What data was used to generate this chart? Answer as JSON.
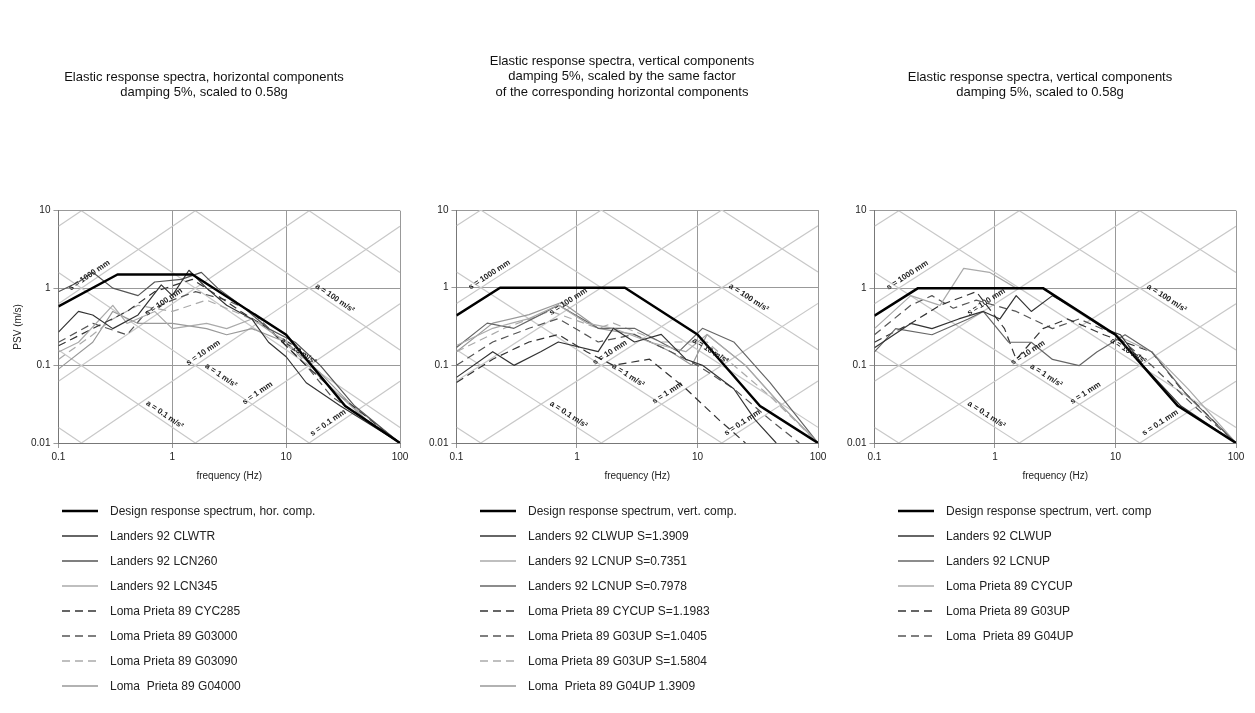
{
  "chart_data": [
    {
      "type": "line",
      "title": "Elastic response spectra, horizontal components\ndamping 5%, scaled to 0.58g",
      "xlabel": "frequency (Hz)",
      "ylabel": "PSV (m/s)",
      "log": "xy",
      "xlim": [
        0.1,
        100
      ],
      "ylim": [
        0.01,
        10
      ],
      "xticks": [
        0.1,
        1,
        10,
        100
      ],
      "yticks": [
        0.01,
        0.1,
        1,
        10
      ],
      "grid": true,
      "legend": "bottom",
      "marker": "none",
      "series": [
        {
          "name": "Design response spectrum, hor. comp.",
          "color": "#000000",
          "line_style": "solid",
          "x": [
            0.1,
            0.33,
            1.5,
            10,
            33,
            100
          ],
          "values": [
            0.58,
            1.5,
            1.5,
            0.25,
            0.03,
            0.01
          ]
        },
        {
          "name": "Landers 92 CLWTR",
          "color": "#333333",
          "line_style": "solid",
          "x": [
            0.1,
            0.15,
            0.2,
            0.3,
            0.5,
            0.8,
            1,
            1.4,
            2,
            3,
            5,
            7,
            10,
            15,
            30,
            100
          ],
          "values": [
            0.27,
            0.5,
            0.45,
            0.3,
            0.45,
            1.1,
            0.8,
            1.7,
            1.0,
            0.6,
            0.4,
            0.2,
            0.13,
            0.06,
            0.03,
            0.01
          ]
        },
        {
          "name": "Landers 92 LCN260",
          "color": "#555555",
          "line_style": "solid",
          "x": [
            0.1,
            0.15,
            0.2,
            0.3,
            0.5,
            0.7,
            1.2,
            1.8,
            2.5,
            4,
            7,
            12,
            20,
            40,
            100
          ],
          "values": [
            0.9,
            1.2,
            1.6,
            1.0,
            0.8,
            1.2,
            1.3,
            1.6,
            1.0,
            0.6,
            0.3,
            0.2,
            0.1,
            0.03,
            0.01
          ]
        },
        {
          "name": "Landers 92 LCN345",
          "color": "#aaaaaa",
          "line_style": "solid",
          "x": [
            0.1,
            0.15,
            0.3,
            0.4,
            0.7,
            1,
            2,
            3,
            5,
            8,
            12,
            20,
            50,
            100
          ],
          "values": [
            0.15,
            0.2,
            0.6,
            0.35,
            0.5,
            0.3,
            0.35,
            0.3,
            0.4,
            0.25,
            0.18,
            0.07,
            0.02,
            0.01
          ]
        },
        {
          "name": "Loma Prieta 89 CYC285",
          "color": "#333333",
          "line_style": "dashed",
          "x": [
            0.1,
            0.2,
            0.4,
            0.7,
            1.5,
            2.5,
            4,
            7,
            15,
            30,
            100
          ],
          "values": [
            0.18,
            0.3,
            0.5,
            0.9,
            1.3,
            0.8,
            0.5,
            0.3,
            0.1,
            0.04,
            0.01
          ]
        },
        {
          "name": "Loma Prieta 89 G03000",
          "color": "#555555",
          "line_style": "dashed",
          "x": [
            0.1,
            0.2,
            0.4,
            0.6,
            1,
            1.6,
            3,
            5,
            8,
            15,
            25,
            100
          ],
          "values": [
            0.2,
            0.35,
            0.25,
            0.5,
            0.7,
            0.9,
            0.7,
            0.5,
            0.25,
            0.1,
            0.04,
            0.01
          ]
        },
        {
          "name": "Loma Prieta 89 G03090",
          "color": "#aaaaaa",
          "line_style": "dashed",
          "x": [
            0.1,
            0.2,
            0.3,
            0.5,
            1,
            2,
            3.5,
            6,
            12,
            25,
            100
          ],
          "values": [
            0.12,
            0.25,
            0.4,
            0.6,
            0.5,
            0.7,
            0.5,
            0.35,
            0.15,
            0.05,
            0.01
          ]
        },
        {
          "name": "Loma  Prieta 89 G04000",
          "color": "#999999",
          "line_style": "solid",
          "x": [
            0.1,
            0.2,
            0.3,
            0.5,
            1,
            2,
            3,
            5,
            10,
            20,
            50,
            100
          ],
          "values": [
            0.09,
            0.2,
            0.5,
            0.35,
            0.35,
            0.3,
            0.25,
            0.3,
            0.2,
            0.08,
            0.02,
            0.01
          ]
        },
        {
          "color": "#c8c8c8",
          "x": [
            15.92,
            100
          ],
          "values": [
            0.01,
            0.0628
          ]
        },
        {
          "color": "#c8c8c8",
          "x": [
            1.592,
            100
          ],
          "values": [
            0.01,
            0.628
          ]
        },
        {
          "color": "#c8c8c8",
          "x": [
            0.1592,
            100
          ],
          "values": [
            0.01,
            6.283
          ]
        },
        {
          "color": "#c8c8c8",
          "x": [
            0.1,
            15.92
          ],
          "values": [
            0.0628,
            10
          ]
        },
        {
          "color": "#c8c8c8",
          "x": [
            0.1,
            1.592
          ],
          "values": [
            0.628,
            10
          ]
        },
        {
          "color": "#c8c8c8",
          "x": [
            0.1,
            0.1592
          ],
          "values": [
            6.283,
            10
          ]
        },
        {
          "color": "#c8c8c8",
          "x": [
            0.1,
            0.1592
          ],
          "values": [
            0.0159,
            0.01
          ]
        },
        {
          "color": "#c8c8c8",
          "x": [
            0.1,
            1.592
          ],
          "values": [
            0.159,
            0.01
          ]
        },
        {
          "color": "#c8c8c8",
          "x": [
            0.1,
            15.92
          ],
          "values": [
            1.592,
            0.01
          ]
        },
        {
          "color": "#c8c8c8",
          "x": [
            0.1592,
            100
          ],
          "values": [
            10,
            0.0159
          ]
        },
        {
          "color": "#c8c8c8",
          "x": [
            1.592,
            100
          ],
          "values": [
            10,
            0.159
          ]
        },
        {
          "color": "#c8c8c8",
          "x": [
            15.92,
            100
          ],
          "values": [
            10,
            1.592
          ]
        }
      ],
      "annotations": [
        {
          "text": "s = 1000 mm",
          "x": 0.2,
          "y": 1.26
        },
        {
          "text": "s = 100 mm",
          "x": 0.9,
          "y": 0.57
        },
        {
          "text": "s = 10 mm",
          "x": 2,
          "y": 0.126
        },
        {
          "text": "s = 1 mm",
          "x": 6,
          "y": 0.038
        },
        {
          "text": "s = 0.1 mm",
          "x": 25,
          "y": 0.0157
        },
        {
          "text": "a = 100 m/s²",
          "x": 25,
          "y": 0.64
        },
        {
          "text": "a = 10 m/s²",
          "x": 12,
          "y": 0.133
        },
        {
          "text": "a = 1 m/s²",
          "x": 2.5,
          "y": 0.064
        },
        {
          "text": "a = 0.1 m/s²",
          "x": 0.8,
          "y": 0.02
        }
      ]
    },
    {
      "type": "line",
      "title": "Elastic response spectra, vertical components\ndamping 5%, scaled by the same factor\nof the corresponding horizontal components",
      "xlabel": "frequency (Hz)",
      "log": "xy",
      "xlim": [
        0.1,
        100
      ],
      "ylim": [
        0.01,
        10
      ],
      "xticks": [
        0.1,
        1,
        10,
        100
      ],
      "yticks": [
        0.01,
        0.1,
        1,
        10
      ],
      "grid": true,
      "legend": "bottom",
      "marker": "none",
      "series": [
        {
          "name": "Design response spectrum, vert. comp.",
          "color": "#000000",
          "line_style": "solid",
          "x": [
            0.1,
            0.23,
            2.5,
            10,
            33,
            100
          ],
          "values": [
            0.44,
            1,
            1,
            0.25,
            0.03,
            0.01
          ]
        },
        {
          "name": "Landers 92 CLWUP S=1.3909",
          "color": "#333333",
          "line_style": "solid",
          "x": [
            0.1,
            0.2,
            0.3,
            0.5,
            0.7,
            1.5,
            2,
            3,
            5,
            8,
            11,
            20,
            30,
            45
          ],
          "values": [
            0.07,
            0.15,
            0.1,
            0.15,
            0.2,
            0.15,
            0.3,
            0.2,
            0.25,
            0.12,
            0.1,
            0.05,
            0.02,
            0.01
          ]
        },
        {
          "name": "Landers 92 LCNUP S=0.7351",
          "color": "#aaaaaa",
          "line_style": "solid",
          "x": [
            0.1,
            0.2,
            0.4,
            0.7,
            1.2,
            2,
            4,
            8,
            12,
            25,
            50,
            100
          ],
          "values": [
            0.18,
            0.3,
            0.4,
            0.6,
            0.35,
            0.3,
            0.2,
            0.15,
            0.25,
            0.1,
            0.03,
            0.01
          ]
        },
        {
          "name": "Landers 92 LCNUP S=0.7978",
          "color": "#666666",
          "line_style": "solid",
          "x": [
            0.1,
            0.18,
            0.3,
            0.5,
            0.7,
            1.5,
            3,
            7,
            11,
            20,
            40,
            100
          ],
          "values": [
            0.17,
            0.35,
            0.3,
            0.45,
            0.6,
            0.3,
            0.3,
            0.15,
            0.3,
            0.2,
            0.06,
            0.01
          ]
        },
        {
          "name": "Loma Prieta 89 CYCUP S=1.1983",
          "color": "#333333",
          "line_style": "dashed",
          "x": [
            0.1,
            0.2,
            0.4,
            0.7,
            1.2,
            2,
            4,
            8,
            15,
            25
          ],
          "values": [
            0.06,
            0.12,
            0.2,
            0.25,
            0.15,
            0.1,
            0.12,
            0.05,
            0.02,
            0.01
          ]
        },
        {
          "name": "Loma Prieta 89 G03UP S=1.0405",
          "color": "#555555",
          "line_style": "dashed",
          "x": [
            0.1,
            0.2,
            0.4,
            0.7,
            1.5,
            3,
            6,
            10,
            20,
            40,
            70
          ],
          "values": [
            0.1,
            0.2,
            0.3,
            0.4,
            0.2,
            0.25,
            0.15,
            0.1,
            0.05,
            0.02,
            0.01
          ]
        },
        {
          "name": "Loma Prieta 89 G03UP S=1.5804",
          "color": "#aaaaaa",
          "line_style": "dashed",
          "x": [
            0.1,
            0.25,
            0.6,
            1.5,
            2,
            5,
            12,
            20,
            40,
            100
          ],
          "values": [
            0.15,
            0.3,
            0.5,
            0.3,
            0.35,
            0.2,
            0.2,
            0.1,
            0.04,
            0.01
          ]
        },
        {
          "name": "Loma  Prieta 89 G04UP 1.3909",
          "color": "#999999",
          "line_style": "solid",
          "x": [
            0.1,
            0.2,
            0.4,
            0.75,
            1.5,
            3,
            6,
            9,
            12,
            25,
            50,
            100
          ],
          "values": [
            0.15,
            0.35,
            0.45,
            0.65,
            0.3,
            0.25,
            0.15,
            0.1,
            0.25,
            0.1,
            0.03,
            0.01
          ]
        },
        {
          "color": "#c8c8c8",
          "x": [
            15.92,
            100
          ],
          "values": [
            0.01,
            0.0628
          ]
        },
        {
          "color": "#c8c8c8",
          "x": [
            1.592,
            100
          ],
          "values": [
            0.01,
            0.628
          ]
        },
        {
          "color": "#c8c8c8",
          "x": [
            0.1592,
            100
          ],
          "values": [
            0.01,
            6.283
          ]
        },
        {
          "color": "#c8c8c8",
          "x": [
            0.1,
            15.92
          ],
          "values": [
            0.0628,
            10
          ]
        },
        {
          "color": "#c8c8c8",
          "x": [
            0.1,
            1.592
          ],
          "values": [
            0.628,
            10
          ]
        },
        {
          "color": "#c8c8c8",
          "x": [
            0.1,
            0.1592
          ],
          "values": [
            6.283,
            10
          ]
        },
        {
          "color": "#c8c8c8",
          "x": [
            0.1,
            0.1592
          ],
          "values": [
            0.0159,
            0.01
          ]
        },
        {
          "color": "#c8c8c8",
          "x": [
            0.1,
            1.592
          ],
          "values": [
            0.159,
            0.01
          ]
        },
        {
          "color": "#c8c8c8",
          "x": [
            0.1,
            15.92
          ],
          "values": [
            1.592,
            0.01
          ]
        },
        {
          "color": "#c8c8c8",
          "x": [
            0.1592,
            100
          ],
          "values": [
            10,
            0.0159
          ]
        },
        {
          "color": "#c8c8c8",
          "x": [
            1.592,
            100
          ],
          "values": [
            10,
            0.159
          ]
        },
        {
          "color": "#c8c8c8",
          "x": [
            15.92,
            100
          ],
          "values": [
            10,
            1.592
          ]
        }
      ],
      "annotations": [
        {
          "text": "s = 1000 mm",
          "x": 0.2,
          "y": 1.26
        },
        {
          "text": "s = 100 mm",
          "x": 0.9,
          "y": 0.57
        },
        {
          "text": "s = 10 mm",
          "x": 2,
          "y": 0.126
        },
        {
          "text": "s = 1 mm",
          "x": 6,
          "y": 0.038
        },
        {
          "text": "s = 0.1 mm",
          "x": 25,
          "y": 0.0157
        },
        {
          "text": "a = 100 m/s²",
          "x": 25,
          "y": 0.64
        },
        {
          "text": "a = 10 m/s²",
          "x": 12,
          "y": 0.133
        },
        {
          "text": "a = 1 m/s²",
          "x": 2.5,
          "y": 0.064
        },
        {
          "text": "a = 0.1 m/s²",
          "x": 0.8,
          "y": 0.02
        }
      ]
    },
    {
      "type": "line",
      "title": "Elastic response spectra, vertical components\ndamping 5%, scaled to 0.58g",
      "xlabel": "frequency (Hz)",
      "log": "xy",
      "xlim": [
        0.1,
        100
      ],
      "ylim": [
        0.01,
        10
      ],
      "xticks": [
        0.1,
        1,
        10,
        100
      ],
      "yticks": [
        0.01,
        0.1,
        1,
        10
      ],
      "grid": true,
      "legend": "bottom",
      "marker": "none",
      "series": [
        {
          "name": "Design response spectrum, vert. comp",
          "color": "#000000",
          "line_style": "solid",
          "x": [
            0.1,
            0.23,
            2.5,
            10,
            33,
            100
          ],
          "values": [
            0.44,
            1,
            1,
            0.25,
            0.03,
            0.01
          ]
        },
        {
          "name": "Landers 92 CLWUP",
          "color": "#333333",
          "line_style": "solid",
          "x": [
            0.1,
            0.2,
            0.3,
            0.5,
            0.8,
            1.1,
            1.5,
            2,
            3,
            5,
            8,
            11,
            17,
            35,
            100
          ],
          "values": [
            0.17,
            0.35,
            0.3,
            0.4,
            0.5,
            0.4,
            0.8,
            0.5,
            0.8,
            0.5,
            0.3,
            0.25,
            0.1,
            0.03,
            0.01
          ]
        },
        {
          "name": "Landers 92 LCNUP",
          "color": "#666666",
          "line_style": "solid",
          "x": [
            0.1,
            0.15,
            0.3,
            0.6,
            0.8,
            1.3,
            2,
            3,
            5,
            7,
            12,
            20,
            40,
            100
          ],
          "values": [
            0.15,
            0.3,
            0.25,
            0.4,
            0.5,
            0.2,
            0.2,
            0.12,
            0.1,
            0.15,
            0.25,
            0.15,
            0.04,
            0.01
          ]
        },
        {
          "name": "Loma Prieta 89 CYCUP",
          "color": "#aaaaaa",
          "line_style": "solid",
          "x": [
            0.1,
            0.2,
            0.35,
            0.55,
            0.9,
            1.5,
            2.5,
            4,
            6,
            10,
            20,
            40,
            100
          ],
          "values": [
            0.3,
            0.8,
            0.6,
            1.8,
            1.6,
            1.0,
            1.0,
            0.6,
            0.4,
            0.25,
            0.15,
            0.05,
            0.01
          ]
        },
        {
          "name": "Loma Prieta 89 G03UP",
          "color": "#333333",
          "line_style": "dashed",
          "x": [
            0.1,
            0.2,
            0.35,
            0.7,
            1.2,
            1.5,
            2.5,
            4,
            8,
            20,
            35,
            100
          ],
          "values": [
            0.2,
            0.35,
            0.6,
            0.9,
            0.3,
            0.12,
            0.3,
            0.4,
            0.25,
            0.15,
            0.05,
            0.01
          ]
        },
        {
          "name": "Loma  Prieta 89 G04UP",
          "color": "#555555",
          "line_style": "dashed",
          "x": [
            0.1,
            0.2,
            0.3,
            0.45,
            0.7,
            1.5,
            3,
            5,
            10,
            20,
            45,
            100
          ],
          "values": [
            0.25,
            0.6,
            0.8,
            0.55,
            0.7,
            0.5,
            0.3,
            0.4,
            0.25,
            0.1,
            0.03,
            0.01
          ]
        },
        {
          "color": "#c8c8c8",
          "x": [
            15.92,
            100
          ],
          "values": [
            0.01,
            0.0628
          ]
        },
        {
          "color": "#c8c8c8",
          "x": [
            1.592,
            100
          ],
          "values": [
            0.01,
            0.628
          ]
        },
        {
          "color": "#c8c8c8",
          "x": [
            0.1592,
            100
          ],
          "values": [
            0.01,
            6.283
          ]
        },
        {
          "color": "#c8c8c8",
          "x": [
            0.1,
            15.92
          ],
          "values": [
            0.0628,
            10
          ]
        },
        {
          "color": "#c8c8c8",
          "x": [
            0.1,
            1.592
          ],
          "values": [
            0.628,
            10
          ]
        },
        {
          "color": "#c8c8c8",
          "x": [
            0.1,
            0.1592
          ],
          "values": [
            6.283,
            10
          ]
        },
        {
          "color": "#c8c8c8",
          "x": [
            0.1,
            0.1592
          ],
          "values": [
            0.0159,
            0.01
          ]
        },
        {
          "color": "#c8c8c8",
          "x": [
            0.1,
            1.592
          ],
          "values": [
            0.159,
            0.01
          ]
        },
        {
          "color": "#c8c8c8",
          "x": [
            0.1,
            15.92
          ],
          "values": [
            1.592,
            0.01
          ]
        },
        {
          "color": "#c8c8c8",
          "x": [
            0.1592,
            100
          ],
          "values": [
            10,
            0.0159
          ]
        },
        {
          "color": "#c8c8c8",
          "x": [
            1.592,
            100
          ],
          "values": [
            10,
            0.159
          ]
        },
        {
          "color": "#c8c8c8",
          "x": [
            15.92,
            100
          ],
          "values": [
            10,
            1.592
          ]
        }
      ],
      "annotations": [
        {
          "text": "s = 1000 mm",
          "x": 0.2,
          "y": 1.26
        },
        {
          "text": "s = 100 mm",
          "x": 0.9,
          "y": 0.57
        },
        {
          "text": "s = 10 mm",
          "x": 2,
          "y": 0.126
        },
        {
          "text": "s = 1 mm",
          "x": 6,
          "y": 0.038
        },
        {
          "text": "s = 0.1 mm",
          "x": 25,
          "y": 0.0157
        },
        {
          "text": "a = 100 m/s²",
          "x": 25,
          "y": 0.64
        },
        {
          "text": "a = 10 m/s²",
          "x": 12,
          "y": 0.133
        },
        {
          "text": "a = 1 m/s²",
          "x": 2.5,
          "y": 0.064
        },
        {
          "text": "a = 0.1 m/s²",
          "x": 0.8,
          "y": 0.02
        }
      ]
    }
  ]
}
